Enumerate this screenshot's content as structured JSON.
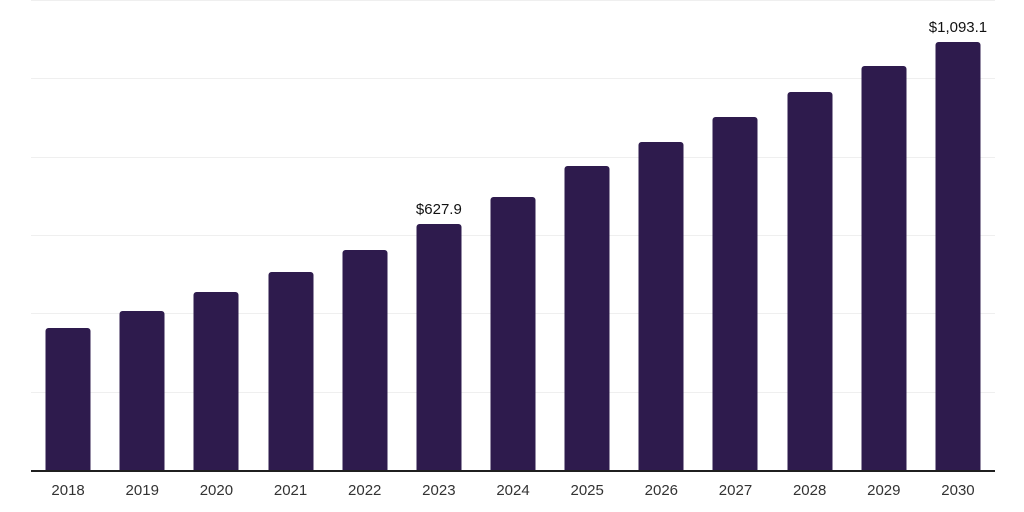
{
  "chart_data": {
    "type": "bar",
    "title": "",
    "xlabel": "",
    "ylabel": "",
    "categories": [
      "2018",
      "2019",
      "2020",
      "2021",
      "2022",
      "2023",
      "2024",
      "2025",
      "2026",
      "2027",
      "2028",
      "2029",
      "2030"
    ],
    "values": [
      362,
      405,
      455,
      505,
      562,
      627.9,
      698,
      775,
      838,
      901,
      966,
      1031,
      1093.1
    ],
    "data_labels": [
      "",
      "",
      "",
      "",
      "",
      "$627.9",
      "",
      "",
      "",
      "",
      "",
      "",
      "$1,093.1"
    ],
    "ylim": [
      0,
      1200
    ],
    "ytick_interval": 200,
    "grid": true,
    "ytick_labels_visible": false,
    "legend_position": "none",
    "colors": {
      "bar": "#2e1b4d",
      "gridline": "#efefef",
      "axis_line": "#1f1f1f",
      "tick_label": "#333333",
      "data_label": "#111111",
      "background": "#ffffff"
    }
  }
}
